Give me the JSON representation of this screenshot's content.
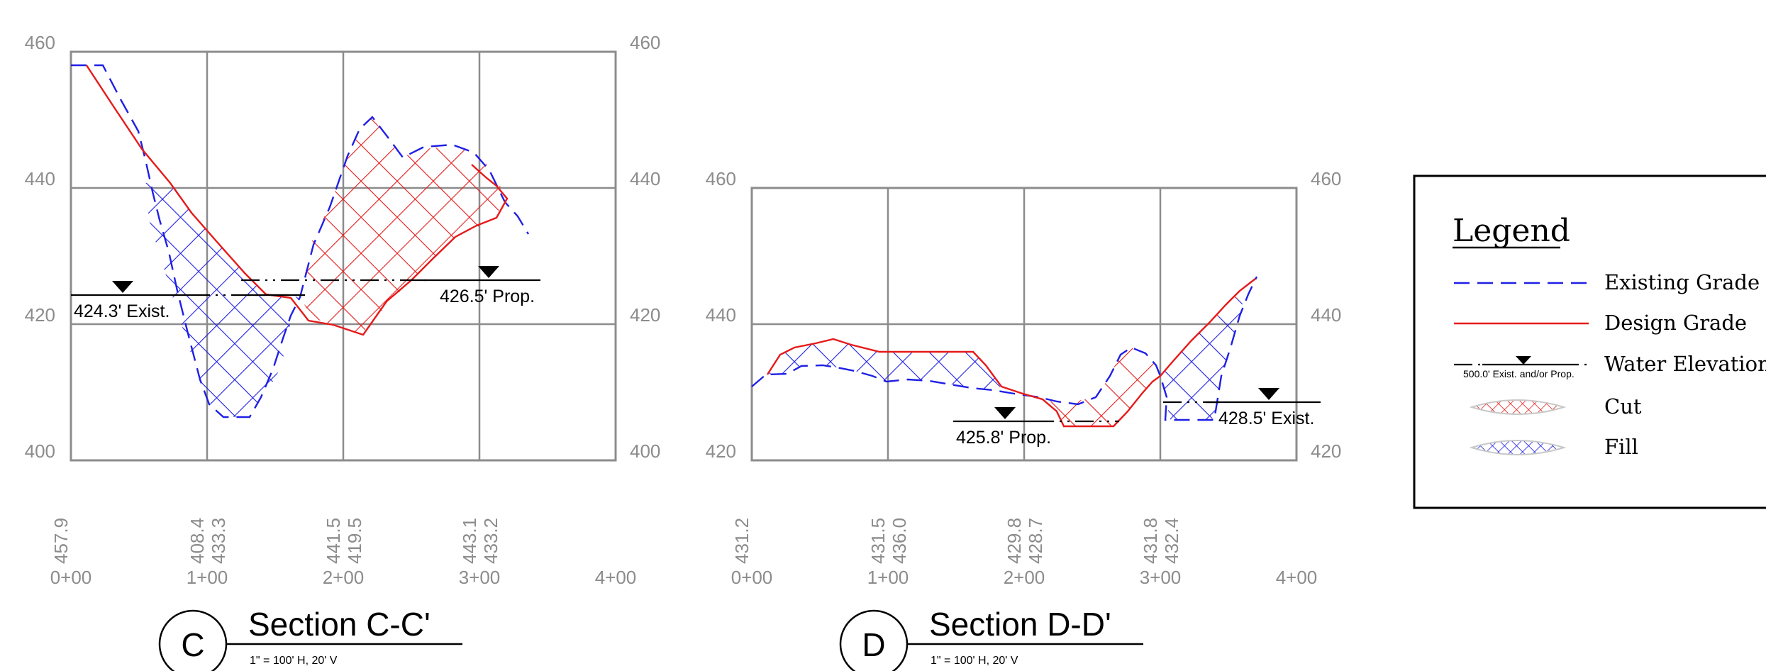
{
  "sections": [
    {
      "id": "C",
      "title": "Section C-C'",
      "scale": "1\" = 100' H, 20' V",
      "elevation_ticks": [
        "460",
        "440",
        "420",
        "400"
      ],
      "station_ticks": [
        "0+00",
        "1+00",
        "2+00",
        "3+00",
        "4+00"
      ],
      "grade_labels": [
        "457.9",
        "408.4",
        "433.3",
        "441.5",
        "419.5",
        "443.1",
        "433.2"
      ],
      "water_labels": [
        "424.3' Exist.",
        "426.5' Prop."
      ],
      "existing_water_elevation": 424.3,
      "proposed_water_elevation": 426.5
    },
    {
      "id": "D",
      "title": "Section D-D'",
      "scale": "1\" = 100' H, 20' V",
      "elevation_ticks": [
        "460",
        "440",
        "420"
      ],
      "station_ticks": [
        "0+00",
        "1+00",
        "2+00",
        "3+00",
        "4+00"
      ],
      "grade_labels": [
        "431.2",
        "431.5",
        "436.0",
        "429.8",
        "428.7",
        "431.8",
        "432.4"
      ],
      "water_labels": [
        "425.8' Prop.",
        "428.5' Exist."
      ],
      "existing_water_elevation": 428.5,
      "proposed_water_elevation": 425.8
    }
  ],
  "legend": {
    "title": "Legend",
    "items": [
      "Existing Grade",
      "Design Grade",
      "Water Elevation",
      "Cut",
      "Fill"
    ],
    "water_sample_label": "500.0' Exist. and/or Prop."
  },
  "colors": {
    "existing": "#1f1fe6",
    "design": "#e61a1a",
    "grid": "#8c8c8c"
  }
}
